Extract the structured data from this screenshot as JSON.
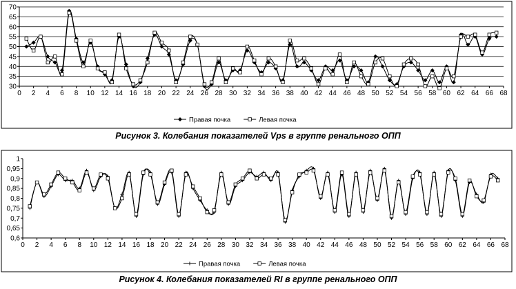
{
  "chart_data": [
    {
      "type": "line",
      "caption": "Рисунок 3. Колебания показателей Vps в группе ренального ОПП",
      "ylim": [
        30,
        70
      ],
      "yticks": [
        30,
        35,
        40,
        45,
        50,
        55,
        60,
        65,
        70
      ],
      "xlim": [
        0,
        68
      ],
      "xticks": [
        0,
        2,
        4,
        6,
        8,
        10,
        12,
        14,
        16,
        18,
        20,
        22,
        24,
        26,
        28,
        30,
        32,
        34,
        36,
        38,
        40,
        42,
        44,
        46,
        48,
        50,
        52,
        54,
        56,
        58,
        60,
        62,
        64,
        66,
        68
      ],
      "grid": true,
      "legend_position": "bottom-center",
      "x": [
        1,
        2,
        3,
        4,
        5,
        6,
        7,
        8,
        9,
        10,
        11,
        12,
        13,
        14,
        15,
        16,
        17,
        18,
        19,
        20,
        21,
        22,
        23,
        24,
        25,
        26,
        27,
        28,
        29,
        30,
        31,
        32,
        33,
        34,
        35,
        36,
        37,
        38,
        39,
        40,
        41,
        42,
        43,
        44,
        45,
        46,
        47,
        48,
        49,
        50,
        51,
        52,
        53,
        54,
        55,
        56,
        57,
        58,
        59,
        60,
        61,
        62,
        63,
        64,
        65,
        66,
        67
      ],
      "series": [
        {
          "name": "Правая почка",
          "marker": "diamond",
          "values": [
            50,
            52,
            55,
            45,
            42,
            38,
            68,
            54,
            42,
            52,
            40,
            36,
            33,
            55,
            41,
            30,
            32,
            44,
            56,
            50,
            46,
            33,
            41,
            53,
            51,
            30,
            31,
            42,
            33,
            38,
            38,
            48,
            42,
            37,
            42,
            39,
            33,
            51,
            40,
            42,
            38,
            33,
            40,
            38,
            43,
            33,
            40,
            38,
            32,
            45,
            40,
            33,
            31,
            40,
            42,
            38,
            33,
            38,
            32,
            40,
            32,
            56,
            51,
            55,
            46,
            54,
            55
          ]
        },
        {
          "name": "Левая почка",
          "marker": "square",
          "values": [
            54,
            48,
            55,
            42,
            45,
            36,
            67,
            53,
            40,
            53,
            39,
            37,
            32,
            56,
            39,
            31,
            33,
            42,
            57,
            52,
            48,
            32,
            42,
            55,
            51,
            31,
            32,
            44,
            32,
            39,
            37,
            50,
            43,
            36,
            44,
            40,
            32,
            53,
            43,
            44,
            39,
            31,
            39,
            36,
            46,
            32,
            42,
            35,
            31,
            42,
            44,
            35,
            30,
            41,
            44,
            41,
            30,
            35,
            29,
            39,
            35,
            55,
            55,
            56,
            47,
            56,
            57
          ]
        }
      ],
      "legend": [
        "Правая почка",
        "Левая почка"
      ]
    },
    {
      "type": "line",
      "caption": "Рисунок 4. Колебания показателей RI в группе ренального ОПП",
      "ylim": [
        0.6,
        1.0
      ],
      "ytick_labels": [
        "0,6",
        "0,65",
        "0,7",
        "0,75",
        "0,8",
        "0,85",
        "0,9",
        "0,95",
        "1"
      ],
      "yticks": [
        0.6,
        0.65,
        0.7,
        0.75,
        0.8,
        0.85,
        0.9,
        0.95,
        1.0
      ],
      "xlim": [
        0,
        68
      ],
      "xticks": [
        0,
        2,
        4,
        6,
        8,
        10,
        12,
        14,
        16,
        18,
        20,
        22,
        24,
        26,
        28,
        30,
        32,
        34,
        36,
        38,
        40,
        42,
        44,
        46,
        48,
        50,
        52,
        54,
        56,
        58,
        60,
        62,
        64,
        66,
        68
      ],
      "grid": false,
      "legend_position": "bottom-center",
      "x": [
        1,
        2,
        3,
        4,
        5,
        6,
        7,
        8,
        9,
        10,
        11,
        12,
        13,
        14,
        15,
        16,
        17,
        18,
        19,
        20,
        21,
        22,
        23,
        24,
        25,
        26,
        27,
        28,
        29,
        30,
        31,
        32,
        33,
        34,
        35,
        36,
        37,
        38,
        39,
        40,
        41,
        42,
        43,
        44,
        45,
        46,
        47,
        48,
        49,
        50,
        51,
        52,
        53,
        54,
        55,
        56,
        57,
        58,
        59,
        60,
        61,
        62,
        63,
        64,
        65,
        66,
        67
      ],
      "series": [
        {
          "name": "Правая почка",
          "marker": "plus",
          "values": [
            0.75,
            0.88,
            0.81,
            0.86,
            0.92,
            0.89,
            0.89,
            0.85,
            0.94,
            0.84,
            0.91,
            0.91,
            0.75,
            0.82,
            0.93,
            0.71,
            0.92,
            0.93,
            0.77,
            0.87,
            0.93,
            0.71,
            0.93,
            0.85,
            0.79,
            0.74,
            0.73,
            0.93,
            0.77,
            0.86,
            0.89,
            0.93,
            0.91,
            0.93,
            0.89,
            0.93,
            0.68,
            0.84,
            0.91,
            0.94,
            0.95,
            0.8,
            0.93,
            0.73,
            0.92,
            0.71,
            0.93,
            0.73,
            0.94,
            0.79,
            0.95,
            0.7,
            0.89,
            0.72,
            0.9,
            0.93,
            0.72,
            0.93,
            0.71,
            0.94,
            0.89,
            0.71,
            0.88,
            0.82,
            0.78,
            0.92,
            0.9
          ]
        },
        {
          "name": "Левая почка",
          "marker": "square",
          "values": [
            0.76,
            0.88,
            0.82,
            0.87,
            0.93,
            0.9,
            0.88,
            0.84,
            0.93,
            0.85,
            0.92,
            0.9,
            0.75,
            0.8,
            0.92,
            0.72,
            0.93,
            0.92,
            0.78,
            0.88,
            0.94,
            0.72,
            0.92,
            0.86,
            0.8,
            0.73,
            0.74,
            0.92,
            0.78,
            0.87,
            0.9,
            0.94,
            0.9,
            0.92,
            0.9,
            0.92,
            0.69,
            0.83,
            0.92,
            0.93,
            0.94,
            0.81,
            0.92,
            0.74,
            0.93,
            0.72,
            0.92,
            0.74,
            0.93,
            0.8,
            0.94,
            0.71,
            0.88,
            0.73,
            0.91,
            0.92,
            0.73,
            0.92,
            0.72,
            0.93,
            0.9,
            0.72,
            0.89,
            0.81,
            0.79,
            0.91,
            0.89
          ]
        }
      ],
      "legend": [
        "Правая почка",
        "Левая почка"
      ]
    }
  ]
}
